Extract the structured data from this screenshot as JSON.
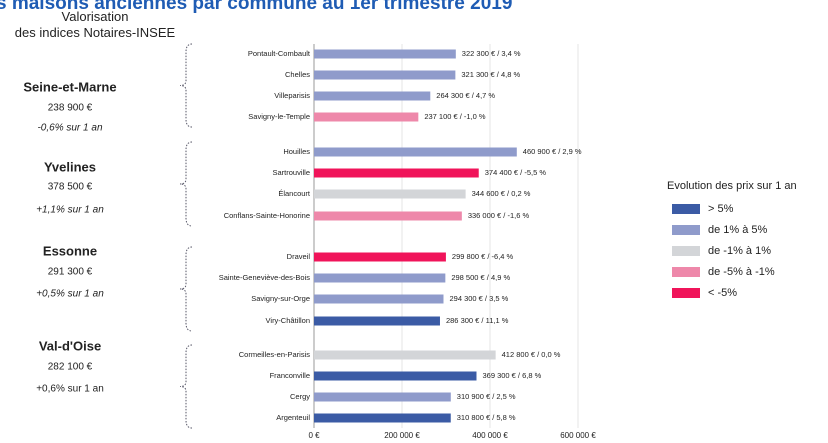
{
  "chart_data": {
    "type": "bar",
    "title": "s maisons anciennes par commune au 1er trimestre 2019",
    "subtitle": "Valorisation des indices Notaires-INSEE",
    "categories": [
      "Pontault-Combault",
      "Chelles",
      "Villeparisis",
      "Savigny-le-Temple",
      "Houilles",
      "Sartrouville",
      "Élancourt",
      "Conflans-Sainte-Honorine",
      "Draveil",
      "Sainte-Geneviève-des-Bois",
      "Savigny-sur-Orge",
      "Viry-Châtillon",
      "Cormeilles-en-Parisis",
      "Franconville",
      "Cergy",
      "Argenteuil"
    ],
    "values": [
      322300,
      321300,
      264300,
      237100,
      460900,
      374400,
      344600,
      336000,
      299800,
      298500,
      294300,
      286300,
      412800,
      369300,
      310900,
      310800
    ],
    "value_labels": [
      "322 300 € / 3,4 %",
      "321 300 € / 4,8 %",
      "264 300 € / 4,7 %",
      "237 100 € / -1,0 %",
      "460 900 € / 2,9 %",
      "374 400 € / -5,5 %",
      "344 600 € / 0,2 %",
      "336 000 € / -1,6 %",
      "299 800 € / -6,4 %",
      "298 500 € / 4,9 %",
      "294 300 € / 3,5 %",
      "286 300 € / 11,1 %",
      "412 800 € / 0,0 %",
      "369 300 € / 6,8 %",
      "310 900 € / 2,5 %",
      "310 800 € / 5,8 %"
    ],
    "colors": [
      "#8f9bcb",
      "#8f9bcb",
      "#8f9bcb",
      "#ee88aa",
      "#8f9bcb",
      "#f0145a",
      "#d3d5d8",
      "#ee88aa",
      "#f0145a",
      "#8f9bcb",
      "#8f9bcb",
      "#3b5ba5",
      "#d3d5d8",
      "#3b5ba5",
      "#8f9bcb",
      "#3b5ba5"
    ],
    "xlim": [
      0,
      600000
    ],
    "xticks": [
      {
        "value": 0,
        "label": "0 €"
      },
      {
        "value": 200000,
        "label": "200 000 €"
      },
      {
        "value": 400000,
        "label": "400 000 €"
      },
      {
        "value": 600000,
        "label": "600 000 €"
      }
    ],
    "groups": [
      {
        "name": "Seine-et-Marne",
        "price": "238 900 €",
        "change": "-0,6% sur 1 an"
      },
      {
        "name": "Yvelines",
        "price": "378 500 €",
        "change": "+1,1% sur 1 an"
      },
      {
        "name": "Essonne",
        "price": "291 300 €",
        "change": "+0,5% sur 1 an"
      },
      {
        "name": "Val-d'Oise",
        "price": "282 100 €",
        "change": "+0,6% sur 1 an"
      }
    ],
    "legend_title": "Evolution des prix sur 1 an",
    "legend": [
      {
        "name": "> 5%",
        "color": "#3b5ba5"
      },
      {
        "name": "de 1% à 5%",
        "color": "#8f9bcb"
      },
      {
        "name": "de -1% à 1%",
        "color": "#d3d5d8"
      },
      {
        "name": "de -5% à -1%",
        "color": "#ee88aa"
      },
      {
        "name": "< -5%",
        "color": "#f0145a"
      }
    ]
  }
}
